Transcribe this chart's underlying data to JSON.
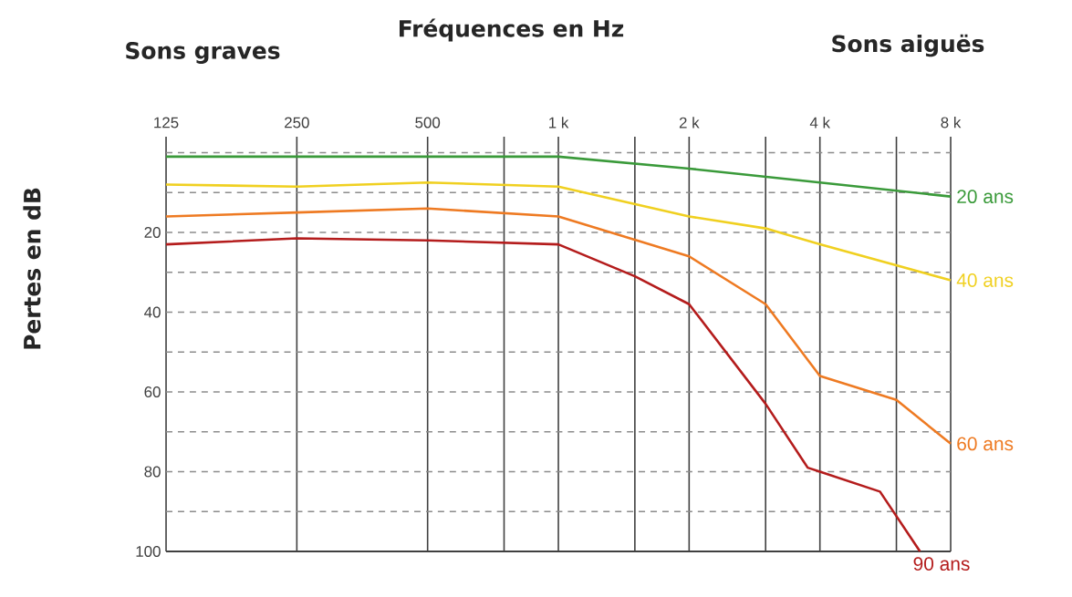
{
  "chart_data": {
    "type": "line",
    "xlabel": "Fréquences en Hz",
    "ylabel": "Pertes en dB",
    "annotations": [
      "Sons graves",
      "Sons aiguës"
    ],
    "log": "x",
    "grid": true,
    "marker": "none",
    "line_style": "solid",
    "xlim": [
      125,
      8000
    ],
    "ylim": [
      100,
      -4
    ],
    "xticks": [
      125,
      250,
      500,
      {
        "value": 750,
        "label": null
      },
      {
        "value": 1000,
        "label": "1 k"
      },
      {
        "value": 1500,
        "label": null
      },
      {
        "value": 2000,
        "label": "2 k"
      },
      {
        "value": 3000,
        "label": null
      },
      {
        "value": 4000,
        "label": "4 k"
      },
      {
        "value": 6000,
        "label": null
      },
      {
        "value": 8000,
        "label": "8 k"
      }
    ],
    "yticks": [
      {
        "value": 0,
        "label": null
      },
      {
        "value": 10,
        "label": null
      },
      20,
      {
        "value": 30,
        "label": null
      },
      40,
      {
        "value": 50,
        "label": null
      },
      60,
      {
        "value": 70,
        "label": null
      },
      80,
      {
        "value": 90,
        "label": null
      },
      100
    ],
    "series": [
      {
        "name": "20 ans",
        "color": "#3a9a3a",
        "x": [
          125,
          250,
          500,
          1000,
          2000,
          4000,
          8000
        ],
        "values": [
          1,
          1,
          1,
          1,
          4,
          7.5,
          11
        ]
      },
      {
        "name": "40 ans",
        "color": "#f0d020",
        "x": [
          125,
          250,
          500,
          1000,
          2000,
          3000,
          4000,
          8000
        ],
        "values": [
          8,
          8.5,
          7.5,
          8.5,
          16,
          19,
          23,
          32
        ]
      },
      {
        "name": "60 ans",
        "color": "#ee7a22",
        "x": [
          125,
          250,
          500,
          1000,
          2000,
          3000,
          4000,
          6000,
          8000
        ],
        "values": [
          16,
          15,
          14,
          16,
          26,
          38,
          56,
          62,
          73
        ]
      },
      {
        "name": "90 ans",
        "color": "#b41c1c",
        "x": [
          125,
          250,
          500,
          1000,
          1500,
          2000,
          3000,
          3750,
          4000,
          5500,
          6800
        ],
        "values": [
          23,
          21.5,
          22,
          23,
          31,
          38,
          63,
          79,
          80,
          85,
          100
        ]
      }
    ]
  }
}
